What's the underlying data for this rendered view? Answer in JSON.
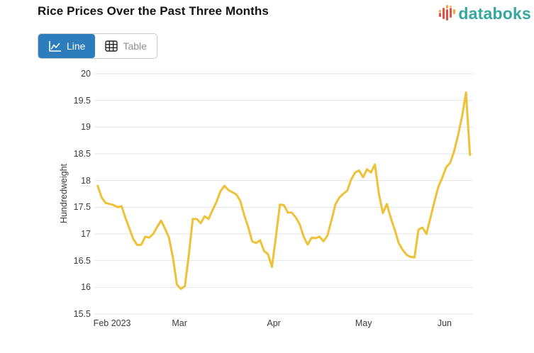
{
  "header": {
    "title": "Rice Prices Over the Past Three Months"
  },
  "logo": {
    "text": "databoks",
    "colors": {
      "teal": "#35A79F",
      "red": "#E05243",
      "orange": "#F2A43B"
    }
  },
  "toolbar": {
    "line_label": "Line",
    "table_label": "Table",
    "active_tab": "Line",
    "active_color": "#2D7DBD"
  },
  "chart_data": {
    "type": "line",
    "title": "Rice Prices Over the Past Three Months",
    "xlabel": "",
    "ylabel": "Hundredweight",
    "ylim": [
      15.5,
      20
    ],
    "y_ticks": [
      20,
      19.5,
      19,
      18.5,
      18,
      17.5,
      17,
      16.5,
      16,
      15.5
    ],
    "x_ticks": [
      {
        "label": "Feb 2023",
        "pos": 0.047
      },
      {
        "label": "Mar",
        "pos": 0.225
      },
      {
        "label": "Apr",
        "pos": 0.474
      },
      {
        "label": "May",
        "pos": 0.711
      },
      {
        "label": "Jun",
        "pos": 0.925
      }
    ],
    "grid": "horizontal",
    "legend": "none",
    "line_color": "#EFC137",
    "line_x_range": [
      0.009,
      0.992
    ],
    "series": [
      {
        "name": "Rice price (hundredweight)",
        "values": [
          17.9,
          17.68,
          17.58,
          17.56,
          17.54,
          17.5,
          17.52,
          17.3,
          17.1,
          16.9,
          16.79,
          16.8,
          16.95,
          16.93,
          17.0,
          17.13,
          17.25,
          17.1,
          16.93,
          16.55,
          16.05,
          15.97,
          16.02,
          16.6,
          17.28,
          17.28,
          17.2,
          17.33,
          17.28,
          17.45,
          17.6,
          17.8,
          17.9,
          17.82,
          17.78,
          17.74,
          17.62,
          17.35,
          17.13,
          16.86,
          16.83,
          16.88,
          16.68,
          16.62,
          16.38,
          16.95,
          17.55,
          17.54,
          17.4,
          17.4,
          17.31,
          17.18,
          16.95,
          16.8,
          16.93,
          16.92,
          16.95,
          16.86,
          16.97,
          17.25,
          17.55,
          17.68,
          17.75,
          17.81,
          18.02,
          18.15,
          18.19,
          18.06,
          18.21,
          18.15,
          18.3,
          17.75,
          17.39,
          17.56,
          17.3,
          17.08,
          16.83,
          16.7,
          16.61,
          16.57,
          16.56,
          17.08,
          17.12,
          17.0,
          17.3,
          17.6,
          17.88,
          18.05,
          18.25,
          18.33,
          18.55,
          18.85,
          19.2,
          19.65,
          18.48
        ]
      }
    ]
  }
}
